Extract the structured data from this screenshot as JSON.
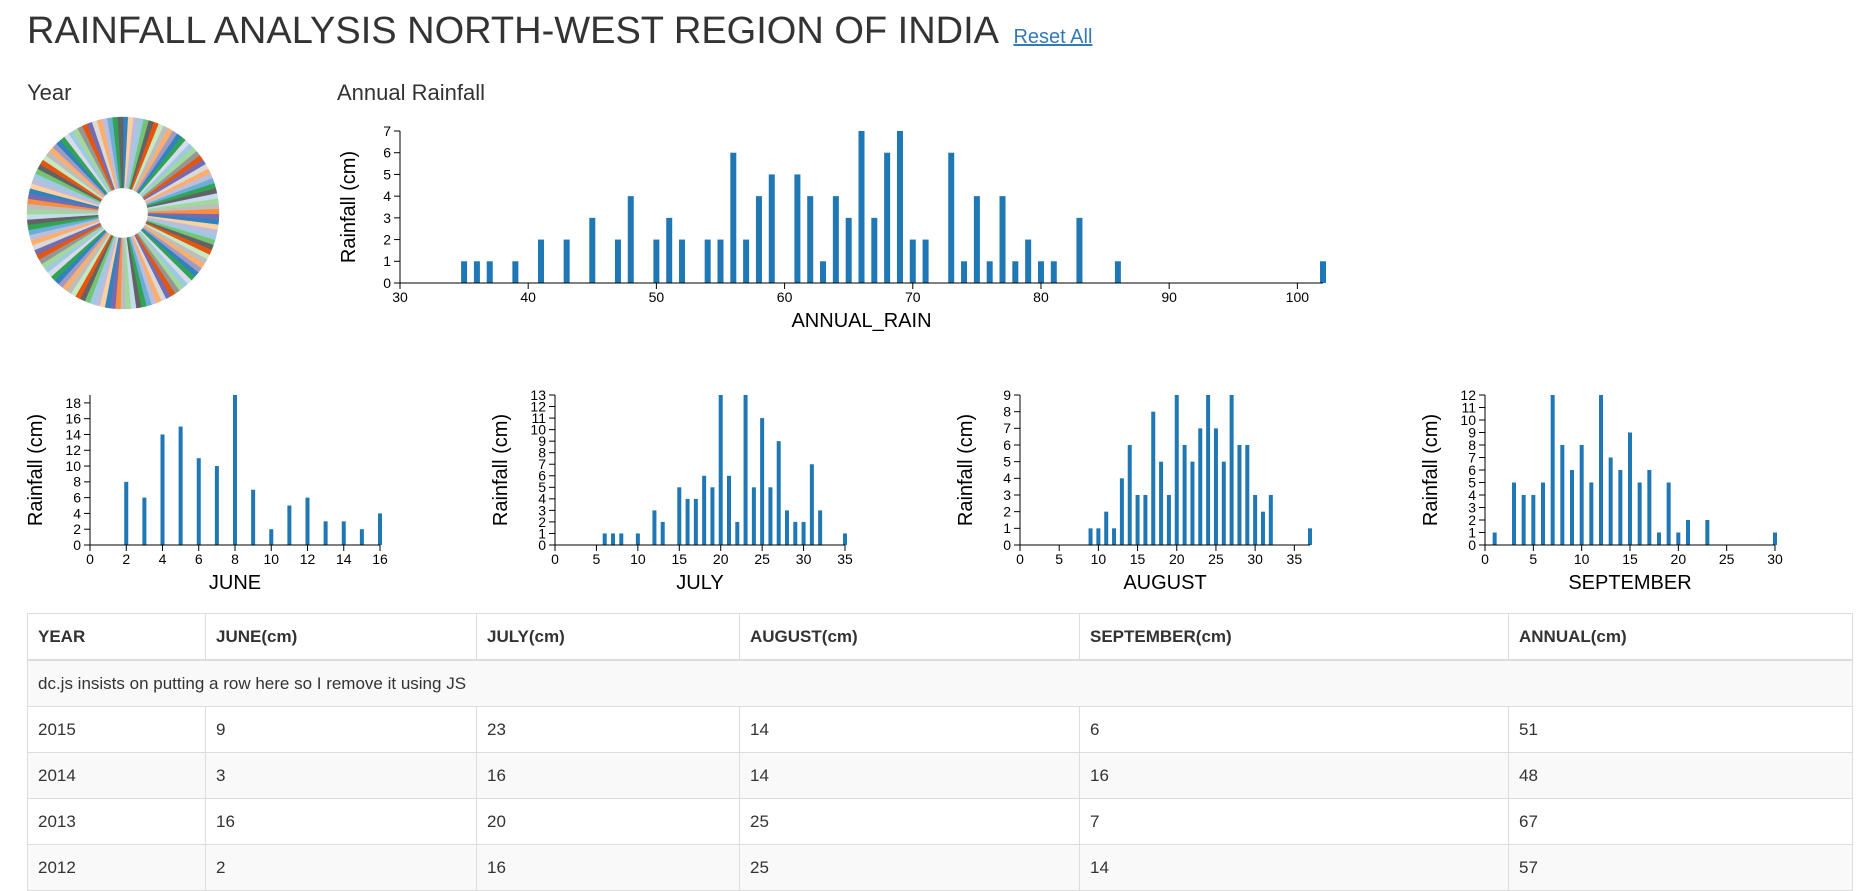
{
  "header": {
    "title": "RAINFALL ANALYSIS NORTH-WEST REGION OF INDIA",
    "reset_label": "Reset All"
  },
  "year_chart": {
    "title": "Year"
  },
  "annual_chart": {
    "title": "Annual Rainfall"
  },
  "colors": {
    "bar": "#1f77b4",
    "pie": [
      "#3182bd",
      "#6baed6",
      "#9ecae1",
      "#c6dbef",
      "#e6550d",
      "#fd8d3c",
      "#fdae6b",
      "#fdd0a2",
      "#31a354",
      "#74c476",
      "#a1d99b",
      "#c7e9c0",
      "#756bb1",
      "#9e9ac8",
      "#bcbddc",
      "#dadaeb",
      "#636363",
      "#969696",
      "#bdbdbd",
      "#d9d9d9"
    ]
  },
  "chart_data": [
    {
      "type": "pie",
      "title": "Year",
      "slice_count": 115,
      "donut": true
    },
    {
      "type": "bar",
      "title": "Annual Rainfall",
      "xlabel": "ANNUAL_RAIN",
      "ylabel": "Rainfall (cm)",
      "xlim": [
        30,
        102
      ],
      "ylim": [
        0,
        7
      ],
      "xticks": [
        30,
        40,
        50,
        60,
        70,
        80,
        90,
        100
      ],
      "yticks": [
        0,
        1,
        2,
        3,
        4,
        5,
        6,
        7
      ],
      "points": [
        [
          35,
          1
        ],
        [
          36,
          1
        ],
        [
          37,
          1
        ],
        [
          39,
          1
        ],
        [
          41,
          2
        ],
        [
          43,
          2
        ],
        [
          45,
          3
        ],
        [
          47,
          2
        ],
        [
          48,
          4
        ],
        [
          50,
          2
        ],
        [
          51,
          3
        ],
        [
          52,
          2
        ],
        [
          54,
          2
        ],
        [
          55,
          2
        ],
        [
          56,
          6
        ],
        [
          57,
          2
        ],
        [
          58,
          4
        ],
        [
          59,
          5
        ],
        [
          61,
          5
        ],
        [
          62,
          4
        ],
        [
          63,
          1
        ],
        [
          64,
          4
        ],
        [
          65,
          3
        ],
        [
          66,
          7
        ],
        [
          67,
          3
        ],
        [
          68,
          6
        ],
        [
          69,
          7
        ],
        [
          70,
          2
        ],
        [
          71,
          2
        ],
        [
          73,
          6
        ],
        [
          74,
          1
        ],
        [
          75,
          4
        ],
        [
          76,
          1
        ],
        [
          77,
          4
        ],
        [
          78,
          1
        ],
        [
          79,
          2
        ],
        [
          80,
          1
        ],
        [
          81,
          1
        ],
        [
          83,
          3
        ],
        [
          86,
          1
        ],
        [
          102,
          1
        ]
      ]
    },
    {
      "type": "bar",
      "xlabel": "JUNE",
      "ylabel": "Rainfall (cm)",
      "xlim": [
        0,
        16
      ],
      "ylim": [
        0,
        19
      ],
      "xticks": [
        0,
        2,
        4,
        6,
        8,
        10,
        12,
        14,
        16
      ],
      "yticks": [
        0,
        2,
        4,
        6,
        8,
        10,
        12,
        14,
        16,
        18
      ],
      "points": [
        [
          2,
          8
        ],
        [
          3,
          6
        ],
        [
          4,
          14
        ],
        [
          5,
          15
        ],
        [
          6,
          11
        ],
        [
          7,
          10
        ],
        [
          8,
          19
        ],
        [
          9,
          7
        ],
        [
          10,
          2
        ],
        [
          11,
          5
        ],
        [
          12,
          6
        ],
        [
          13,
          3
        ],
        [
          14,
          3
        ],
        [
          15,
          2
        ],
        [
          16,
          4
        ]
      ]
    },
    {
      "type": "bar",
      "xlabel": "JULY",
      "ylabel": "Rainfall (cm)",
      "xlim": [
        0,
        35
      ],
      "ylim": [
        0,
        13
      ],
      "xticks": [
        0,
        5,
        10,
        15,
        20,
        25,
        30,
        35
      ],
      "yticks": [
        0,
        1,
        2,
        3,
        4,
        5,
        6,
        7,
        8,
        9,
        10,
        11,
        12,
        13
      ],
      "points": [
        [
          6,
          1
        ],
        [
          7,
          1
        ],
        [
          8,
          1
        ],
        [
          10,
          1
        ],
        [
          12,
          3
        ],
        [
          13,
          2
        ],
        [
          15,
          5
        ],
        [
          16,
          4
        ],
        [
          17,
          4
        ],
        [
          18,
          6
        ],
        [
          19,
          5
        ],
        [
          20,
          13
        ],
        [
          21,
          6
        ],
        [
          22,
          2
        ],
        [
          23,
          13
        ],
        [
          24,
          5
        ],
        [
          25,
          11
        ],
        [
          26,
          5
        ],
        [
          27,
          9
        ],
        [
          28,
          3
        ],
        [
          29,
          2
        ],
        [
          30,
          2
        ],
        [
          31,
          7
        ],
        [
          32,
          3
        ],
        [
          35,
          1
        ]
      ]
    },
    {
      "type": "bar",
      "xlabel": "AUGUST",
      "ylabel": "Rainfall (cm)",
      "xlim": [
        0,
        37
      ],
      "ylim": [
        0,
        9
      ],
      "xticks": [
        0,
        5,
        10,
        15,
        20,
        25,
        30,
        35
      ],
      "yticks": [
        0,
        1,
        2,
        3,
        4,
        5,
        6,
        7,
        8,
        9
      ],
      "points": [
        [
          9,
          1
        ],
        [
          10,
          1
        ],
        [
          11,
          2
        ],
        [
          12,
          1
        ],
        [
          13,
          4
        ],
        [
          14,
          6
        ],
        [
          15,
          3
        ],
        [
          16,
          3
        ],
        [
          17,
          8
        ],
        [
          18,
          5
        ],
        [
          19,
          3
        ],
        [
          20,
          9
        ],
        [
          21,
          6
        ],
        [
          22,
          5
        ],
        [
          23,
          7
        ],
        [
          24,
          9
        ],
        [
          25,
          7
        ],
        [
          26,
          5
        ],
        [
          27,
          9
        ],
        [
          28,
          6
        ],
        [
          29,
          6
        ],
        [
          30,
          3
        ],
        [
          31,
          2
        ],
        [
          32,
          3
        ],
        [
          37,
          1
        ]
      ]
    },
    {
      "type": "bar",
      "xlabel": "SEPTEMBER",
      "ylabel": "Rainfall (cm)",
      "xlim": [
        0,
        30
      ],
      "ylim": [
        0,
        12
      ],
      "xticks": [
        0,
        5,
        10,
        15,
        20,
        25,
        30
      ],
      "yticks": [
        0,
        1,
        2,
        3,
        4,
        5,
        6,
        7,
        8,
        9,
        10,
        11,
        12
      ],
      "points": [
        [
          1,
          1
        ],
        [
          3,
          5
        ],
        [
          4,
          4
        ],
        [
          5,
          4
        ],
        [
          6,
          5
        ],
        [
          7,
          12
        ],
        [
          8,
          8
        ],
        [
          9,
          6
        ],
        [
          10,
          8
        ],
        [
          11,
          5
        ],
        [
          12,
          12
        ],
        [
          13,
          7
        ],
        [
          14,
          6
        ],
        [
          15,
          9
        ],
        [
          16,
          5
        ],
        [
          17,
          6
        ],
        [
          18,
          1
        ],
        [
          19,
          5
        ],
        [
          20,
          1
        ],
        [
          21,
          2
        ],
        [
          23,
          2
        ],
        [
          30,
          1
        ]
      ]
    }
  ],
  "table": {
    "headers": [
      "YEAR",
      "JUNE(cm)",
      "JULY(cm)",
      "AUGUST(cm)",
      "SEPTEMBER(cm)",
      "ANNUAL(cm)"
    ],
    "note": "dc.js insists on putting a row here so I remove it using JS",
    "rows": [
      [
        "2015",
        "9",
        "23",
        "14",
        "6",
        "51"
      ],
      [
        "2014",
        "3",
        "16",
        "14",
        "16",
        "48"
      ],
      [
        "2013",
        "16",
        "20",
        "25",
        "7",
        "67"
      ],
      [
        "2012",
        "2",
        "16",
        "25",
        "14",
        "57"
      ]
    ]
  }
}
